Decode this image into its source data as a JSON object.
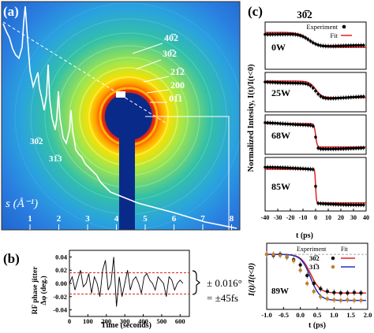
{
  "panel_a": {
    "label": "(a)",
    "axis_label": "s (Å⁻¹)",
    "ticks": [
      "1",
      "2",
      "3",
      "4",
      "5",
      "6",
      "7",
      "8"
    ],
    "peak_labels": [
      "30̅2",
      "31̅3"
    ],
    "ring_labels": [
      "40̅2",
      "30̅2",
      "21̅2",
      "200",
      "01̅1"
    ]
  },
  "panel_b": {
    "label": "(b)",
    "ylabel_1": "RF phase jitter",
    "ylabel_2": "Δφ (deg.)",
    "yticks": [
      "0.04",
      "0.02",
      "0.00",
      "-0.02",
      "-0.04"
    ],
    "xticks": [
      "0",
      "100",
      "200",
      "300",
      "400",
      "500",
      "600"
    ],
    "xlabel": "Time (seconds)",
    "annotation_1": "± 0.016°",
    "annotation_2": "= ±45fs"
  },
  "panel_c": {
    "label": "(c)",
    "title": "30̅2",
    "legend_experiment": "Experiment",
    "legend_fit": "Fit",
    "ylabel": "Normalized Intesity, I(t)/I(t<0)",
    "subplots": [
      "0W",
      "25W",
      "68W",
      "85W"
    ],
    "xticks": [
      "-40",
      "-30",
      "-20",
      "-10",
      "0",
      "10",
      "20",
      "30",
      "40"
    ],
    "xlabel": "t (ps)"
  },
  "panel_d": {
    "ylabel": "I(t)/I(t<0)",
    "legend_experiment": "Experiment",
    "legend_fit": "Fit",
    "series1": "30̅2",
    "series2": "31̅3",
    "subplot": "89W",
    "xticks": [
      "-1.0",
      "-0.5",
      "0.0",
      "0.5",
      "1.0",
      "1.5",
      "2.0"
    ],
    "xlabel": "t (ps)"
  },
  "chart_data": [
    {
      "type": "line",
      "title": "",
      "xlabel": "Time (seconds)",
      "ylabel": "RF phase jitter Δφ (deg.)",
      "xlim": [
        0,
        650
      ],
      "ylim": [
        -0.05,
        0.05
      ],
      "series": [
        {
          "x": [
            0,
            15,
            30,
            45,
            60,
            75,
            90,
            105,
            120,
            135,
            150,
            165,
            180,
            195,
            210,
            225,
            240,
            255,
            270,
            285,
            300,
            315,
            330,
            345,
            360,
            375,
            390,
            405,
            420,
            435,
            450,
            465,
            480,
            495,
            510,
            525,
            540,
            555,
            570,
            585,
            600,
            615
          ],
          "values": [
            0.0,
            0.01,
            -0.01,
            0.005,
            0.02,
            -0.005,
            0.0,
            0.015,
            -0.015,
            0.01,
            0.0,
            -0.02,
            0.02,
            0.035,
            -0.01,
            0.0,
            0.04,
            -0.035,
            0.01,
            -0.02,
            0.0,
            0.02,
            -0.01,
            0.005,
            0.01,
            0.0,
            -0.015,
            0.01,
            0.015,
            0.005,
            0.0,
            -0.01,
            0.01,
            0.005,
            0.0,
            -0.02,
            0.01,
            0.005,
            -0.01,
            0.0,
            0.005,
            0.0
          ]
        },
        {
          "name": "",
          "values": [
            0.016,
            0.016
          ]
        },
        {
          "name": "",
          "values": [
            -0.016,
            -0.016
          ]
        }
      ]
    },
    {
      "type": "scatter",
      "title": "30̅2",
      "xlabel": "t (ps)",
      "ylabel": "Normalized Intesity, I(t)/I(t<0)",
      "xlim": [
        -40,
        40
      ],
      "panels": [
        {
          "name": "0W",
          "t0": -5,
          "width": 8,
          "drop": 0.45
        },
        {
          "name": "25W",
          "t0": 0,
          "width": 5,
          "drop": 0.6
        },
        {
          "name": "68W",
          "t0": 0,
          "width": 1.2,
          "drop": 0.85
        },
        {
          "name": "85W",
          "t0": 0,
          "width": 0.6,
          "drop": 0.9
        }
      ]
    },
    {
      "type": "scatter",
      "title": "",
      "xlabel": "t (ps)",
      "ylabel": "I(t)/I(t<0)",
      "xlim": [
        -1.0,
        2.0
      ],
      "series": [
        {
          "name": "30̅2",
          "x": [
            -1.0,
            -0.8,
            -0.6,
            -0.4,
            -0.2,
            0.0,
            0.2,
            0.4,
            0.6,
            0.8,
            1.0,
            1.2,
            1.4,
            1.6,
            1.8
          ],
          "values": [
            1.0,
            0.98,
            1.0,
            0.95,
            0.9,
            0.8,
            0.6,
            0.45,
            0.35,
            0.3,
            0.28,
            0.27,
            0.27,
            0.28,
            0.27
          ]
        },
        {
          "name": "31̅3",
          "x": [
            -1.0,
            -0.8,
            -0.6,
            -0.4,
            -0.2,
            0.0,
            0.2,
            0.4,
            0.6,
            0.8,
            1.0,
            1.2,
            1.4,
            1.6,
            1.8
          ],
          "values": [
            1.0,
            1.0,
            0.98,
            0.96,
            0.88,
            0.7,
            0.45,
            0.3,
            0.2,
            0.16,
            0.14,
            0.13,
            0.14,
            0.13,
            0.13
          ]
        }
      ]
    }
  ]
}
